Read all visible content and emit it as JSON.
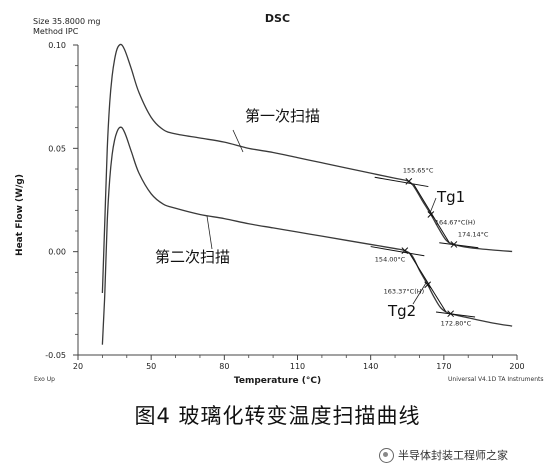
{
  "header": {
    "size_line": "Size  35.8000 mg",
    "method_line": "Method  IPC",
    "title": "DSC"
  },
  "footer": {
    "exo": "Exo Up",
    "software": "Universal V4.1D TA Instruments"
  },
  "caption": "图4  玻璃化转变温度扫描曲线",
  "watermark": "半导体封装工程师之家",
  "colors": {
    "curve": "#3a3a3a",
    "axis": "#444444",
    "tangent": "#111111"
  },
  "chart_data": {
    "type": "line",
    "title": "DSC",
    "xlabel": "Temperature (°C)",
    "ylabel": "Heat Flow (W/g)",
    "xlim": [
      20,
      200
    ],
    "ylim": [
      -0.05,
      0.1
    ],
    "x_ticks": [
      20,
      50,
      80,
      110,
      140,
      170,
      200
    ],
    "y_ticks": [
      -0.05,
      0.0,
      0.05,
      0.1
    ],
    "x_tick_labels": [
      "20",
      "50",
      "80",
      "110",
      "140",
      "170",
      "200"
    ],
    "y_tick_labels": [
      "-0.05",
      "0.00",
      "0.05",
      "0.10"
    ],
    "grid": false,
    "series": [
      {
        "name": "第一次扫描",
        "x": [
          30,
          31,
          32,
          33,
          34,
          35,
          36,
          37,
          38,
          39,
          40,
          42,
          45,
          50,
          55,
          60,
          70,
          80,
          90,
          100,
          110,
          120,
          130,
          140,
          150,
          155.65,
          158,
          161,
          164.67,
          168,
          171,
          174.14,
          180,
          190,
          198
        ],
        "y": [
          -0.02,
          0.015,
          0.05,
          0.072,
          0.085,
          0.093,
          0.098,
          0.1,
          0.1,
          0.098,
          0.095,
          0.088,
          0.077,
          0.065,
          0.059,
          0.057,
          0.055,
          0.053,
          0.05,
          0.048,
          0.0455,
          0.043,
          0.0405,
          0.038,
          0.0355,
          0.034,
          0.031,
          0.025,
          0.018,
          0.011,
          0.0055,
          0.0035,
          0.002,
          0.0008,
          0.0001
        ]
      },
      {
        "name": "第二次扫描",
        "x": [
          30,
          31,
          32,
          33,
          34,
          35,
          36,
          37,
          38,
          39,
          40,
          42,
          45,
          50,
          55,
          60,
          70,
          80,
          90,
          100,
          110,
          120,
          130,
          140,
          150,
          154.0,
          157,
          160,
          163.37,
          166,
          169,
          172.8,
          180,
          190,
          198
        ],
        "y": [
          -0.045,
          -0.02,
          0.015,
          0.035,
          0.047,
          0.054,
          0.058,
          0.06,
          0.06,
          0.058,
          0.055,
          0.048,
          0.038,
          0.028,
          0.023,
          0.021,
          0.018,
          0.016,
          0.0135,
          0.0115,
          0.0095,
          0.0075,
          0.0055,
          0.0035,
          0.0015,
          0.0005,
          -0.002,
          -0.009,
          -0.016,
          -0.022,
          -0.0275,
          -0.03,
          -0.032,
          -0.0345,
          -0.036
        ]
      }
    ],
    "annotations": [
      {
        "text": "155.65°C",
        "series": 0,
        "x": 155.65,
        "y": 0.034
      },
      {
        "text": "164.67°C(H)",
        "series": 0,
        "x": 164.67,
        "y": 0.018
      },
      {
        "text": "174.14°C",
        "series": 0,
        "x": 174.14,
        "y": 0.0035
      },
      {
        "text": "154.00°C",
        "series": 1,
        "x": 154.0,
        "y": 0.0005
      },
      {
        "text": "163.37°C(H)",
        "series": 1,
        "x": 163.37,
        "y": -0.016
      },
      {
        "text": "172.80°C",
        "series": 1,
        "x": 172.8,
        "y": -0.03
      }
    ],
    "labels": {
      "tg1": "Tg1",
      "tg2": "Tg2"
    }
  }
}
